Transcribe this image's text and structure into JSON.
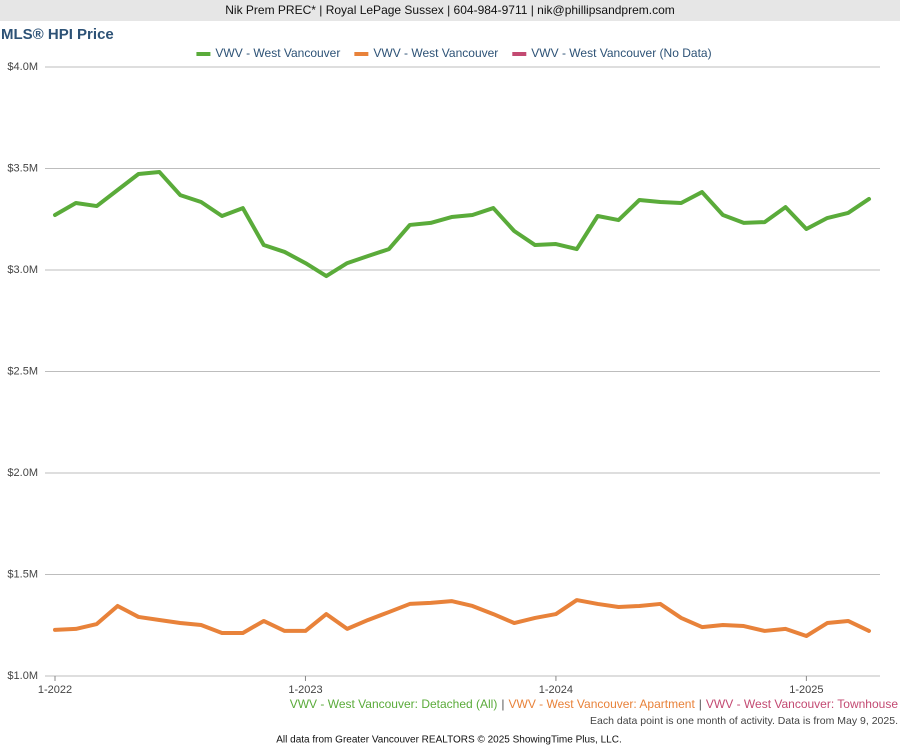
{
  "header": {
    "text": "Nik Prem PREC* | Royal LePage Sussex | 604-984-9711 | nik@phillipsandprem.com"
  },
  "chart_data": {
    "type": "line",
    "title": "MLS® HPI Price",
    "categories": [
      "1-2022",
      null,
      null,
      null,
      null,
      null,
      null,
      null,
      null,
      null,
      null,
      null,
      "1-2023",
      null,
      null,
      null,
      null,
      null,
      null,
      null,
      null,
      null,
      null,
      null,
      "1-2024",
      null,
      null,
      null,
      null,
      null,
      null,
      null,
      null,
      null,
      null,
      null,
      "1-2025",
      null,
      null,
      null
    ],
    "series": [
      {
        "name": "VWV - West Vancouver",
        "color": "#5aab3a",
        "values": [
          3.271,
          3.33,
          3.315,
          3.394,
          3.473,
          3.483,
          3.369,
          3.335,
          3.266,
          3.305,
          3.123,
          3.089,
          3.034,
          2.97,
          3.034,
          3.069,
          3.103,
          3.222,
          3.232,
          3.261,
          3.271,
          3.305,
          3.192,
          3.123,
          3.128,
          3.103,
          3.266,
          3.246,
          3.345,
          3.335,
          3.33,
          3.384,
          3.271,
          3.232,
          3.236,
          3.31,
          3.202,
          3.256,
          3.281,
          3.35
        ]
      },
      {
        "name": "VWV - West Vancouver",
        "color": "#e8823a",
        "values": [
          1.227,
          1.232,
          1.256,
          1.345,
          1.291,
          1.276,
          1.261,
          1.251,
          1.212,
          1.212,
          1.271,
          1.222,
          1.222,
          1.305,
          1.232,
          1.276,
          1.315,
          1.355,
          1.36,
          1.369,
          1.345,
          1.305,
          1.261,
          1.286,
          1.305,
          1.374,
          1.355,
          1.34,
          1.345,
          1.355,
          1.286,
          1.241,
          1.251,
          1.246,
          1.222,
          1.232,
          1.197,
          1.261,
          1.271,
          1.222
        ]
      },
      {
        "name": "VWV - West Vancouver (No Data)",
        "color": "#c34a72",
        "values": [
          null,
          null,
          null,
          null,
          null,
          null,
          null,
          null,
          null,
          null,
          null,
          null,
          null,
          null,
          null,
          null,
          null,
          null,
          null,
          null,
          null,
          null,
          null,
          null,
          null,
          null,
          null,
          null,
          null,
          null,
          null,
          null,
          null,
          null,
          null,
          null,
          null,
          null,
          null,
          null
        ]
      }
    ],
    "ylim": [
      1.0,
      4.0
    ],
    "yticks": [
      {
        "value": 1.0,
        "label": "$1.0M"
      },
      {
        "value": 1.5,
        "label": "$1.5M"
      },
      {
        "value": 2.0,
        "label": "$2.0M"
      },
      {
        "value": 2.5,
        "label": "$2.5M"
      },
      {
        "value": 3.0,
        "label": "$3.0M"
      },
      {
        "value": 3.5,
        "label": "$3.5M"
      },
      {
        "value": 4.0,
        "label": "$4.0M"
      }
    ],
    "grid": true,
    "legend": "top"
  },
  "footer": {
    "series_labels": [
      {
        "text": "VWV - West Vancouver: Detached (All)",
        "color": "#5aab3a"
      },
      {
        "text": "VWV - West Vancouver: Apartment",
        "color": "#e8823a"
      },
      {
        "text": "VWV - West Vancouver: Townhouse",
        "color": "#c34a72"
      }
    ],
    "separator": "|",
    "note": "Each data point is one month of activity. Data is from May 9, 2025.",
    "source": "All data from Greater Vancouver REALTORS © 2025 ShowingTime Plus, LLC."
  }
}
